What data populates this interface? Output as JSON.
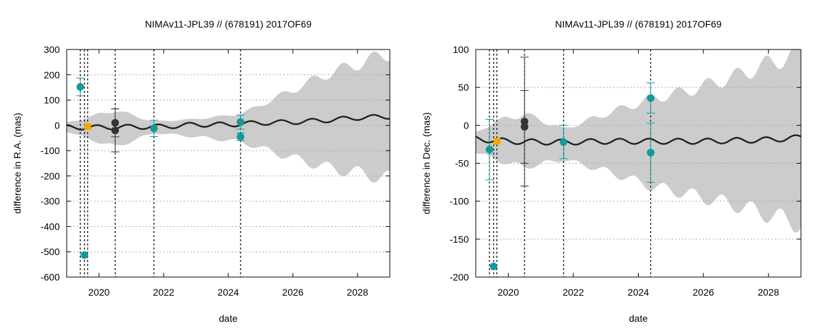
{
  "chart_data": [
    {
      "type": "scatter",
      "title": "NIMAv11-JPL39 // (678191) 2017OF69",
      "xlabel": "date",
      "ylabel": "difference in R.A. (mas)",
      "xlim": [
        2019.0,
        2029.0
      ],
      "ylim": [
        -600,
        300
      ],
      "xticks": [
        2020,
        2022,
        2024,
        2026,
        2028
      ],
      "yticks": [
        -600,
        -500,
        -400,
        -300,
        -200,
        -100,
        0,
        100,
        200,
        300
      ],
      "grid": "horizontal dotted",
      "epochs": [
        2019.42,
        2019.55,
        2019.65,
        2020.5,
        2021.7,
        2024.38
      ],
      "model_curve": {
        "name": "NIMAv11-JPL39 difference",
        "center": [
          [
            2019.0,
            -8
          ],
          [
            2020.0,
            -8
          ],
          [
            2021.0,
            -6
          ],
          [
            2022.0,
            -5
          ],
          [
            2023.0,
            3
          ],
          [
            2024.0,
            3
          ],
          [
            2025.0,
            10
          ],
          [
            2026.0,
            13
          ],
          [
            2027.0,
            20
          ],
          [
            2028.0,
            30
          ],
          [
            2029.0,
            35
          ]
        ],
        "oscillation_amplitude": 9,
        "period_years": 0.95,
        "color": "#222222"
      },
      "uncertainty_band": {
        "upper": [
          [
            2019.0,
            10
          ],
          [
            2019.6,
            30
          ],
          [
            2020.5,
            60
          ],
          [
            2021.7,
            15
          ],
          [
            2023.0,
            25
          ],
          [
            2024.4,
            45
          ],
          [
            2025.5,
            110
          ],
          [
            2027.0,
            200
          ],
          [
            2029.0,
            285
          ]
        ],
        "lower": [
          [
            2019.0,
            -25
          ],
          [
            2019.6,
            -50
          ],
          [
            2020.5,
            -85
          ],
          [
            2021.7,
            -30
          ],
          [
            2023.0,
            -45
          ],
          [
            2024.4,
            -65
          ],
          [
            2025.5,
            -110
          ],
          [
            2027.0,
            -165
          ],
          [
            2029.0,
            -210
          ]
        ],
        "color": "#cccccc"
      },
      "observations": [
        {
          "x": 2019.42,
          "y": 152,
          "err": 35,
          "color": "#139a9a"
        },
        {
          "x": 2019.55,
          "y": -513,
          "err": 0,
          "color": "#139a9a"
        },
        {
          "x": 2019.65,
          "y": -5,
          "err": 0,
          "color": "#f5a800"
        },
        {
          "x": 2020.5,
          "y": 10,
          "err": 55,
          "color": "#333333"
        },
        {
          "x": 2020.5,
          "y": -20,
          "err": 85,
          "color": "#333333"
        },
        {
          "x": 2021.7,
          "y": -12,
          "err": 32,
          "color": "#139a9a"
        },
        {
          "x": 2024.38,
          "y": 13,
          "err": 28,
          "color": "#139a9a"
        },
        {
          "x": 2024.38,
          "y": -45,
          "err": 15,
          "color": "#139a9a"
        }
      ]
    },
    {
      "type": "scatter",
      "title": "NIMAv11-JPL39 // (678191) 2017OF69",
      "xlabel": "date",
      "ylabel": "difference in Dec. (mas)",
      "xlim": [
        2019.0,
        2029.0
      ],
      "ylim": [
        -200,
        100
      ],
      "xticks": [
        2020,
        2022,
        2024,
        2026,
        2028
      ],
      "yticks": [
        -200,
        -150,
        -100,
        -50,
        0,
        50,
        100
      ],
      "grid": "horizontal dotted",
      "epochs": [
        2019.42,
        2019.55,
        2019.65,
        2020.5,
        2021.7,
        2024.38
      ],
      "model_curve": {
        "name": "NIMAv11-JPL39 difference",
        "center": [
          [
            2019.0,
            -18
          ],
          [
            2020.0,
            -21
          ],
          [
            2021.0,
            -22
          ],
          [
            2022.0,
            -22
          ],
          [
            2023.0,
            -21
          ],
          [
            2024.0,
            -21
          ],
          [
            2025.0,
            -21
          ],
          [
            2026.0,
            -21
          ],
          [
            2027.0,
            -20
          ],
          [
            2028.0,
            -19
          ],
          [
            2029.0,
            -16
          ]
        ],
        "oscillation_amplitude": 3.5,
        "period_years": 0.9,
        "color": "#222222"
      },
      "uncertainty_band": {
        "upper": [
          [
            2019.0,
            -10
          ],
          [
            2019.6,
            5
          ],
          [
            2020.5,
            15
          ],
          [
            2021.7,
            -5
          ],
          [
            2023.0,
            15
          ],
          [
            2024.4,
            35
          ],
          [
            2025.5,
            45
          ],
          [
            2027.0,
            65
          ],
          [
            2029.0,
            97
          ]
        ],
        "lower": [
          [
            2019.0,
            -35
          ],
          [
            2019.6,
            -45
          ],
          [
            2020.5,
            -55
          ],
          [
            2021.7,
            -45
          ],
          [
            2023.0,
            -60
          ],
          [
            2024.4,
            -80
          ],
          [
            2025.5,
            -90
          ],
          [
            2027.0,
            -105
          ],
          [
            2029.0,
            -130
          ]
        ],
        "color": "#cccccc"
      },
      "observations": [
        {
          "x": 2019.42,
          "y": -32,
          "err": 40,
          "color": "#139a9a"
        },
        {
          "x": 2019.55,
          "y": -186,
          "err": 0,
          "color": "#139a9a"
        },
        {
          "x": 2019.65,
          "y": -21,
          "err": 0,
          "color": "#f5a800"
        },
        {
          "x": 2020.5,
          "y": 5,
          "err": 85,
          "color": "#333333"
        },
        {
          "x": 2020.5,
          "y": -2,
          "err": 48,
          "color": "#333333"
        },
        {
          "x": 2021.7,
          "y": -22,
          "err": 22,
          "color": "#139a9a"
        },
        {
          "x": 2024.38,
          "y": 36,
          "err": 20,
          "color": "#139a9a"
        },
        {
          "x": 2024.38,
          "y": -36,
          "err": 39,
          "color": "#139a9a"
        }
      ]
    }
  ]
}
